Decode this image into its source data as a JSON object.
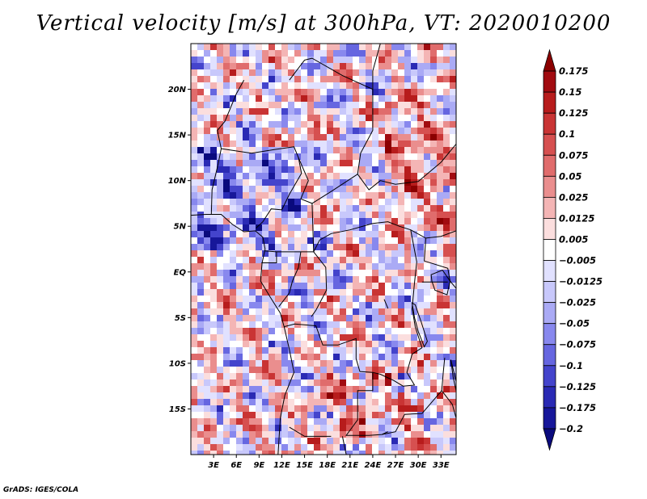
{
  "title": "Vertical velocity [m/s] at 300hPa, VT: 2020010200",
  "credit": "GrADS: IGES/COLA",
  "chart_data": {
    "type": "heatmap",
    "title": "Vertical velocity [m/s] at 300hPa, VT: 2020010200",
    "variable": "Vertical velocity",
    "units": "m/s",
    "level": "300hPa",
    "valid_time": "2020010200",
    "xlim": [
      0,
      35
    ],
    "ylim": [
      -20,
      25
    ],
    "x_ticks": [
      3,
      6,
      9,
      12,
      15,
      18,
      21,
      24,
      27,
      30,
      33
    ],
    "x_tick_labels": [
      "3E",
      "6E",
      "9E",
      "12E",
      "15E",
      "18E",
      "21E",
      "24E",
      "27E",
      "30E",
      "33E"
    ],
    "y_ticks": [
      20,
      15,
      10,
      5,
      0,
      -5,
      -10,
      -15
    ],
    "y_tick_labels": [
      "20N",
      "15N",
      "10N",
      "5N",
      "EQ",
      "5S",
      "10S",
      "15S"
    ],
    "colorbar": {
      "levels": [
        "0.175",
        "0.15",
        "0.125",
        "0.1",
        "0.075",
        "0.05",
        "0.025",
        "0.0125",
        "0.005",
        "−0.005",
        "−0.0125",
        "−0.025",
        "−0.05",
        "−0.075",
        "−0.1",
        "−0.125",
        "−0.175",
        "−0.2"
      ],
      "colors": [
        "#8b0000",
        "#a10b10",
        "#b71c1c",
        "#c93434",
        "#d65050",
        "#e06c6c",
        "#ea8e8e",
        "#f4b5b5",
        "#fbdede",
        "#ffffff",
        "#e1e1ff",
        "#c8c8fb",
        "#aaaaf5",
        "#8888ee",
        "#6666e0",
        "#4444cc",
        "#2a2ab4",
        "#17179a",
        "#0a0a7d"
      ]
    }
  }
}
